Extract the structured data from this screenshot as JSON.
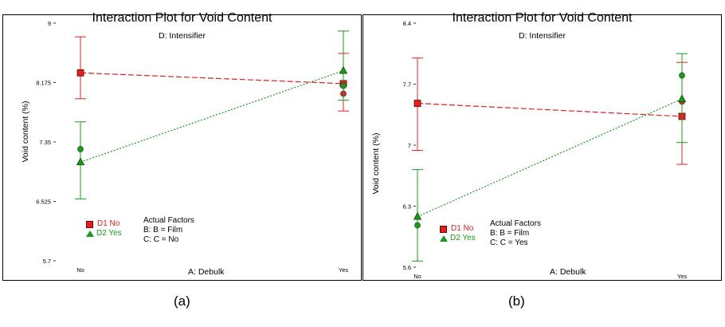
{
  "captions": {
    "a": "(a)",
    "b": "(b)"
  },
  "colors": {
    "d1": "#e02020",
    "d2": "#1a9a1a"
  },
  "chart_data": [
    {
      "type": "line",
      "title": "Interaction Plot for Void Content",
      "subtitle": "D: Intensifier",
      "xlabel": "A: Debulk",
      "ylabel": "Void content (%)",
      "categories": [
        "No",
        "Yes"
      ],
      "ylim": [
        5.7,
        9.0
      ],
      "yticks": [
        "5.7",
        "6.525",
        "7.35",
        "8.175",
        "9"
      ],
      "ytick_values": [
        5.7,
        6.525,
        7.35,
        8.175,
        9.0
      ],
      "legend": [
        {
          "label": "D1 No",
          "marker": "square",
          "color": "#e02020"
        },
        {
          "label": "D2 Yes",
          "marker": "triangle",
          "color": "#1a9a1a"
        }
      ],
      "actual_factors": [
        "Actual Factors",
        "B: B = Film",
        "C: C = No"
      ],
      "series": [
        {
          "name": "D1 No",
          "color": "#e02020",
          "marker": "square",
          "dash": "dashed",
          "values": [
            8.31,
            8.16
          ],
          "ci_low": [
            7.95,
            7.78
          ],
          "ci_high": [
            8.81,
            8.58
          ],
          "obs": [
            [
              8.31
            ],
            [
              8.02
            ]
          ]
        },
        {
          "name": "D2 Yes",
          "color": "#1a9a1a",
          "marker": "triangle",
          "dash": "dotted",
          "values": [
            7.07,
            8.34
          ],
          "ci_low": [
            6.56,
            7.93
          ],
          "ci_high": [
            7.63,
            8.89
          ],
          "obs": [
            [
              7.25
            ],
            [
              8.13
            ]
          ]
        }
      ]
    },
    {
      "type": "line",
      "title": "Interaction Plot for Void Content",
      "subtitle": "D: Intensifier",
      "xlabel": "A: Debulk",
      "ylabel": "Void content (%)",
      "categories": [
        "No",
        "Yes"
      ],
      "ylim": [
        5.6,
        8.4
      ],
      "yticks": [
        "5.6",
        "6.3",
        "7",
        "7.7",
        "8.4"
      ],
      "ytick_values": [
        5.6,
        6.3,
        7.0,
        7.7,
        8.4
      ],
      "legend": [
        {
          "label": "D1 No",
          "marker": "square",
          "color": "#e02020"
        },
        {
          "label": "D2 Yes",
          "marker": "triangle",
          "color": "#1a9a1a"
        }
      ],
      "actual_factors": [
        "Actual Factors",
        "B: B = Film",
        "C: C = Yes"
      ],
      "series": [
        {
          "name": "D1 No",
          "color": "#e02020",
          "marker": "square",
          "dash": "dashed",
          "values": [
            7.48,
            7.33
          ],
          "ci_low": [
            6.94,
            6.78
          ],
          "ci_high": [
            8.0,
            7.95
          ],
          "obs": [
            [
              7.48
            ],
            [
              7.5
            ]
          ]
        },
        {
          "name": "D2 Yes",
          "color": "#1a9a1a",
          "marker": "triangle",
          "dash": "dotted",
          "values": [
            6.18,
            7.53
          ],
          "ci_low": [
            5.67,
            7.03
          ],
          "ci_high": [
            6.72,
            8.05
          ],
          "obs": [
            [
              6.08
            ],
            [
              7.8
            ]
          ]
        }
      ]
    }
  ]
}
